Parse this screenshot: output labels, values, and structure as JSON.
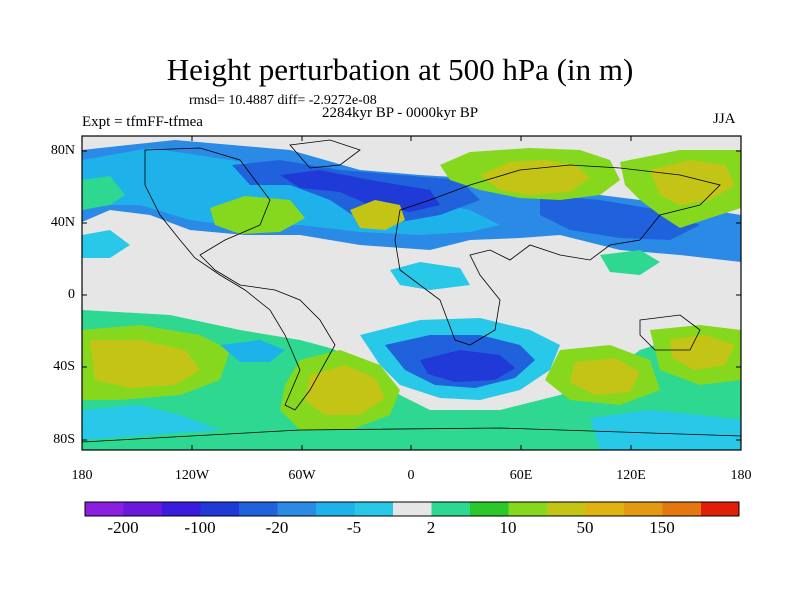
{
  "title": "Height perturbation at 500 hPa (in m)",
  "stats": "rmsd= 10.4887 diff= -2.9272e-08",
  "period": "2284kyr BP - 0000kyr BP",
  "experiment": "Expt = tfmFF-tfmea",
  "season": "JJA",
  "axes": {
    "lat_labels": [
      "80N",
      "40N",
      "0",
      "40S",
      "80S"
    ],
    "lon_labels": [
      "180",
      "120W",
      "60W",
      "0",
      "60E",
      "120E",
      "180"
    ]
  },
  "colorbar": {
    "labels": [
      "-200",
      "-100",
      "-20",
      "-5",
      "2",
      "10",
      "50",
      "150"
    ],
    "colors": [
      "#8a1fe0",
      "#6a18dc",
      "#3a1be0",
      "#1f3ad6",
      "#1f62dc",
      "#2a8ae6",
      "#1fb2ea",
      "#28c8e8",
      "#e6e6e6",
      "#2ed890",
      "#2ac82a",
      "#86d81e",
      "#c4c416",
      "#e0b212",
      "#e29a14",
      "#e4780e",
      "#e2520c",
      "#e01e0a"
    ]
  }
}
